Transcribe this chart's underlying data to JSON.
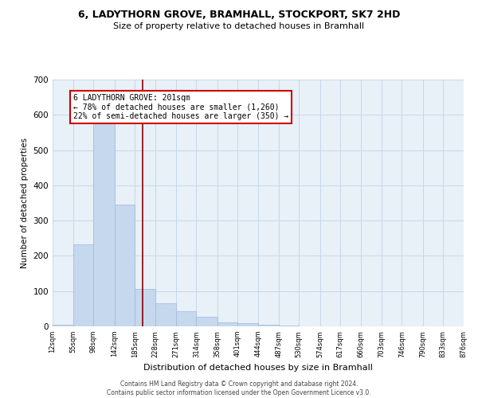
{
  "title1": "6, LADYTHORN GROVE, BRAMHALL, STOCKPORT, SK7 2HD",
  "title2": "Size of property relative to detached houses in Bramhall",
  "xlabel": "Distribution of detached houses by size in Bramhall",
  "ylabel": "Number of detached properties",
  "bin_edges": [
    12,
    55,
    98,
    142,
    185,
    228,
    271,
    314,
    358,
    401,
    444,
    487,
    530,
    574,
    617,
    660,
    703,
    746,
    790,
    833,
    876
  ],
  "bar_heights": [
    5,
    232,
    630,
    345,
    107,
    65,
    43,
    28,
    12,
    10,
    5,
    3,
    1,
    0,
    0,
    0,
    0,
    0,
    0,
    0
  ],
  "bar_color": "#c5d8ed",
  "bar_edge_color": "#a0b8d8",
  "grid_color": "#c8d8e8",
  "bg_color": "#e8f0f8",
  "vline_x": 201,
  "vline_color": "#8b0000",
  "annotation_text": "6 LADYTHORN GROVE: 201sqm\n← 78% of detached houses are smaller (1,260)\n22% of semi-detached houses are larger (350) →",
  "annotation_box_color": "white",
  "annotation_box_edge": "#cc0000",
  "ylim": [
    0,
    700
  ],
  "yticks": [
    0,
    100,
    200,
    300,
    400,
    500,
    600,
    700
  ],
  "footer1": "Contains HM Land Registry data © Crown copyright and database right 2024.",
  "footer2": "Contains public sector information licensed under the Open Government Licence v3.0."
}
